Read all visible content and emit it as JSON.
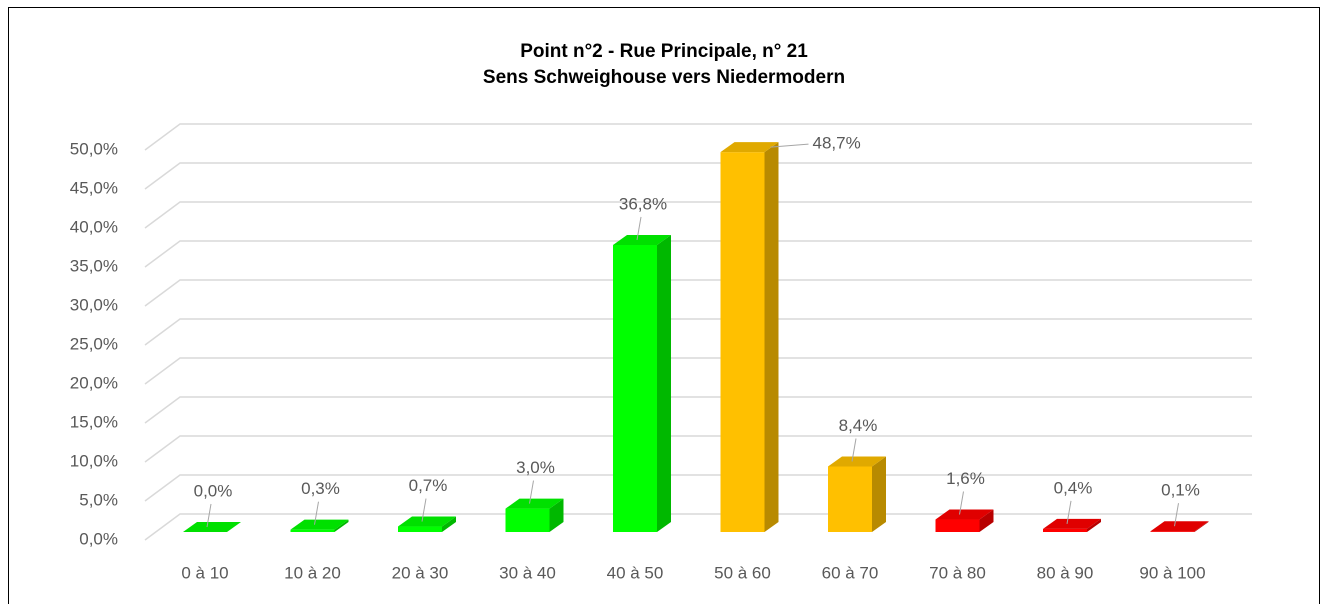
{
  "chart_data": {
    "type": "bar3d",
    "title": [
      "Point n°2 - Rue Principale, n° 21",
      "Sens Schweighouse vers Niedermodern"
    ],
    "categories": [
      "0 à 10",
      "10 à 20",
      "20 à 30",
      "30 à 40",
      "40 à 50",
      "50 à 60",
      "60 à 70",
      "70 à 80",
      "80 à 90",
      "90 à 100"
    ],
    "values": [
      0.0,
      0.3,
      0.7,
      3.0,
      36.8,
      48.7,
      8.4,
      1.6,
      0.4,
      0.1
    ],
    "value_labels": [
      "0,0%",
      "0,3%",
      "0,7%",
      "3,0%",
      "36,8%",
      "48,7%",
      "8,4%",
      "1,6%",
      "0,4%",
      "0,1%"
    ],
    "colors": [
      "#00ff00",
      "#00ff00",
      "#00ff00",
      "#00ff00",
      "#00ff00",
      "#ffc000",
      "#ffc000",
      "#ff0000",
      "#ff0000",
      "#ff0000"
    ],
    "ylim": [
      0,
      50
    ],
    "yticks": [
      {
        "value": 0,
        "label": "0,0%"
      },
      {
        "value": 5,
        "label": "5,0%"
      },
      {
        "value": 10,
        "label": "10,0%"
      },
      {
        "value": 15,
        "label": "15,0%"
      },
      {
        "value": 20,
        "label": "20,0%"
      },
      {
        "value": 25,
        "label": "25,0%"
      },
      {
        "value": 30,
        "label": "30,0%"
      },
      {
        "value": 35,
        "label": "35,0%"
      },
      {
        "value": 40,
        "label": "40,0%"
      },
      {
        "value": 45,
        "label": "45,0%"
      },
      {
        "value": 50,
        "label": "50,0%"
      }
    ],
    "grid": true
  }
}
